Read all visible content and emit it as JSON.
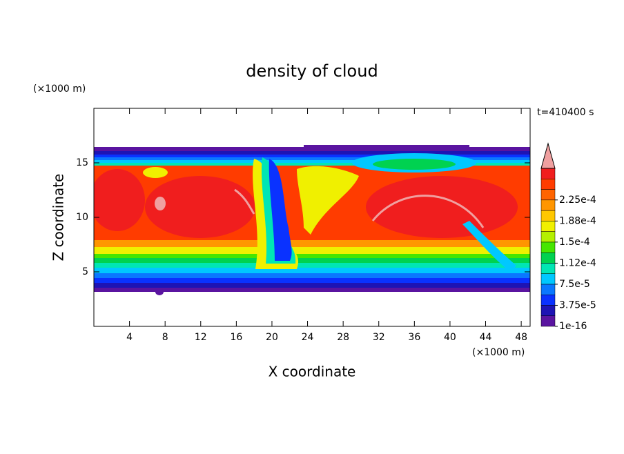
{
  "chart_data": {
    "type": "contour",
    "title": "density of cloud",
    "x_label": "X coordinate",
    "y_label": "Z coordinate",
    "x_unit": "(×1000 m)",
    "y_unit": "(×1000 m)",
    "time_label": "t=410400 s",
    "xlim": [
      0,
      49
    ],
    "xticks": [
      4,
      8,
      12,
      16,
      20,
      24,
      28,
      32,
      36,
      40,
      44,
      48
    ],
    "ylim": [
      0,
      20
    ],
    "yticks": [
      5,
      10,
      15
    ],
    "colorbar": {
      "clim": [
        1e-16,
        0.00028125
      ],
      "cticks": [
        {
          "value": 1e-16,
          "label": "1e-16"
        },
        {
          "value": 3.75e-05,
          "label": "3.75e-5"
        },
        {
          "value": 7.5e-05,
          "label": "7.5e-5"
        },
        {
          "value": 0.0001125,
          "label": "1.12e-4"
        },
        {
          "value": 0.00015,
          "label": "1.5e-4"
        },
        {
          "value": 0.0001875,
          "label": "1.88e-4"
        },
        {
          "value": 0.000225,
          "label": "2.25e-4"
        }
      ],
      "colors": [
        "#5a14a0",
        "#1e14b4",
        "#0a32ff",
        "#0a78ff",
        "#00c8ff",
        "#00e6b4",
        "#00d250",
        "#46e600",
        "#b4f000",
        "#f0f000",
        "#ffc800",
        "#ff9600",
        "#ff6400",
        "#ff3c00",
        "#f01e1e"
      ],
      "overflow_color": "#f0a0a0"
    }
  }
}
